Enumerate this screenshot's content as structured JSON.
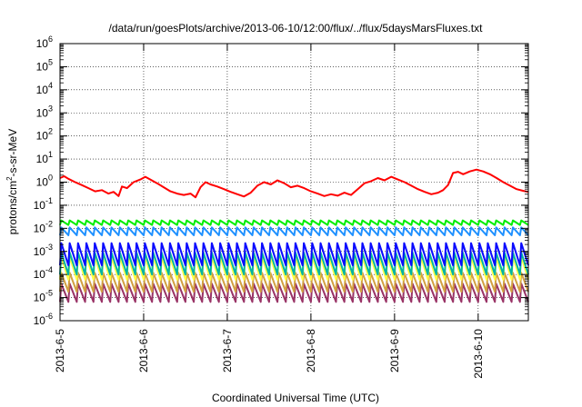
{
  "chart_data": {
    "type": "line",
    "title": "/data/run/goesPlots/archive/2013-06-10/12:00/flux/../flux/5daysMarsFluxes.txt",
    "xlabel": "Coordinated Universal Time (UTC)",
    "ylabel": "protons/cm²-s-sr-MeV",
    "ylabel_parts": {
      "pre": "protons/cm",
      "sup": "2",
      "post": "-s-sr-MeV"
    },
    "yscale": "log",
    "ylim_exp": [
      -6,
      6
    ],
    "yticks": [
      {
        "base": "10",
        "exp": "-6"
      },
      {
        "base": "10",
        "exp": "-5"
      },
      {
        "base": "10",
        "exp": "-4"
      },
      {
        "base": "10",
        "exp": "-3"
      },
      {
        "base": "10",
        "exp": "-2"
      },
      {
        "base": "10",
        "exp": "-1"
      },
      {
        "base": "10",
        "exp": "0"
      },
      {
        "base": "10",
        "exp": "1"
      },
      {
        "base": "10",
        "exp": "2"
      },
      {
        "base": "10",
        "exp": "3"
      },
      {
        "base": "10",
        "exp": "4"
      },
      {
        "base": "10",
        "exp": "5"
      },
      {
        "base": "10",
        "exp": "6"
      }
    ],
    "xlim_days": [
      0,
      5.6
    ],
    "xticks": [
      {
        "label": "2013-6-5",
        "day": 0
      },
      {
        "label": "2013-6-6",
        "day": 1
      },
      {
        "label": "2013-6-7",
        "day": 2
      },
      {
        "label": "2013-6-8",
        "day": 3
      },
      {
        "label": "2013-6-9",
        "day": 4
      },
      {
        "label": "2013-6-10",
        "day": 5
      }
    ],
    "grid": true,
    "legend": "none",
    "series": [
      {
        "color": "#ff0000",
        "pattern": "smooth",
        "x": [
          0,
          0.05,
          0.1,
          0.18,
          0.26,
          0.34,
          0.42,
          0.5,
          0.58,
          0.64,
          0.7,
          0.74,
          0.8,
          0.88,
          0.96,
          1.02,
          1.08,
          1.16,
          1.24,
          1.32,
          1.4,
          1.48,
          1.56,
          1.62,
          1.68,
          1.74,
          1.8,
          1.88,
          1.96,
          2.04,
          2.12,
          2.2,
          2.28,
          2.36,
          2.44,
          2.52,
          2.6,
          2.68,
          2.76,
          2.84,
          2.92,
          3.0,
          3.08,
          3.16,
          3.24,
          3.32,
          3.4,
          3.48,
          3.56,
          3.64,
          3.72,
          3.8,
          3.88,
          3.96,
          4.04,
          4.12,
          4.2,
          4.28,
          4.36,
          4.44,
          4.52,
          4.58,
          4.64,
          4.7,
          4.76,
          4.82,
          4.9,
          4.98,
          5.06,
          5.14,
          5.22,
          5.3,
          5.38,
          5.46,
          5.54,
          5.6
        ],
        "values": [
          1.5,
          1.8,
          1.4,
          1.0,
          0.75,
          0.55,
          0.4,
          0.45,
          0.32,
          0.38,
          0.25,
          0.65,
          0.55,
          1.0,
          1.3,
          1.7,
          1.3,
          0.9,
          0.6,
          0.4,
          0.32,
          0.28,
          0.32,
          0.22,
          0.6,
          1.0,
          0.8,
          0.65,
          0.5,
          0.38,
          0.3,
          0.24,
          0.35,
          0.7,
          1.0,
          0.8,
          1.2,
          0.9,
          0.6,
          0.7,
          0.55,
          0.4,
          0.32,
          0.25,
          0.3,
          0.26,
          0.35,
          0.28,
          0.5,
          0.9,
          1.1,
          1.5,
          1.2,
          1.7,
          1.3,
          1.0,
          0.7,
          0.5,
          0.38,
          0.3,
          0.35,
          0.45,
          0.75,
          2.5,
          2.8,
          2.2,
          2.9,
          3.5,
          2.9,
          2.2,
          1.5,
          1.0,
          0.7,
          0.5,
          0.42,
          0.38
        ]
      },
      {
        "color": "#00ee00",
        "pattern": "saw",
        "high": 0.022,
        "low": 0.014
      },
      {
        "color": "#1e90ff",
        "pattern": "saw",
        "high": 0.011,
        "low": 0.005
      },
      {
        "color": "#0a0aff",
        "pattern": "saw",
        "high": 0.0023,
        "low": 0.00025
      },
      {
        "color": "#00b3a4",
        "pattern": "saw",
        "high": 0.0009,
        "low": 0.0001
      },
      {
        "color": "#ffff44",
        "pattern": "saw",
        "high": 0.0006,
        "low": 6e-05
      },
      {
        "color": "#d2a040",
        "pattern": "saw",
        "high": 0.00012,
        "low": 1.8e-05
      },
      {
        "color": "#993366",
        "pattern": "saw",
        "high": 4e-05,
        "low": 6.5e-06
      }
    ],
    "saw_period_days": 0.1,
    "saw_rise_fraction": 0.15
  }
}
